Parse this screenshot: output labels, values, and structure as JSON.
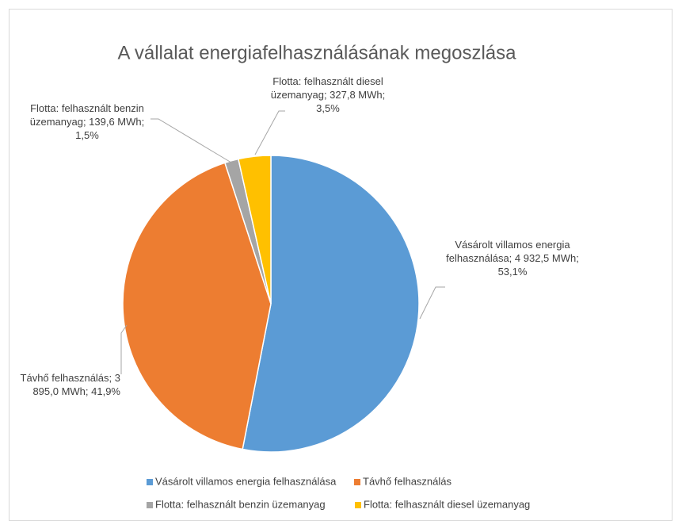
{
  "chart_data": {
    "type": "pie",
    "title": "A vállalat energiafelhasználásának megoszlása",
    "categories": [
      "Vásárolt villamos energia felhasználása",
      "Távhő felhasználás",
      "Flotta: felhasznált benzin üzemanyag",
      "Flotta: felhasznált diesel üzemanyag"
    ],
    "values": [
      4932.5,
      3895.0,
      139.6,
      327.8
    ],
    "value_labels": [
      "Vásárolt villamos energia felhasználása; 4 932,5 MWh; 53,1%",
      "Távhő felhasználás; 3 895,0 MWh; 41,9%",
      "Flotta: felhasznált benzin üzemanyag; 139,6 MWh; 1,5%",
      "Flotta: felhasznált diesel üzemanyag; 327,8 MWh; 3,5%"
    ],
    "colors": [
      "#5b9bd5",
      "#ed7d31",
      "#a5a5a5",
      "#ffc000"
    ],
    "legend": "bottom"
  }
}
